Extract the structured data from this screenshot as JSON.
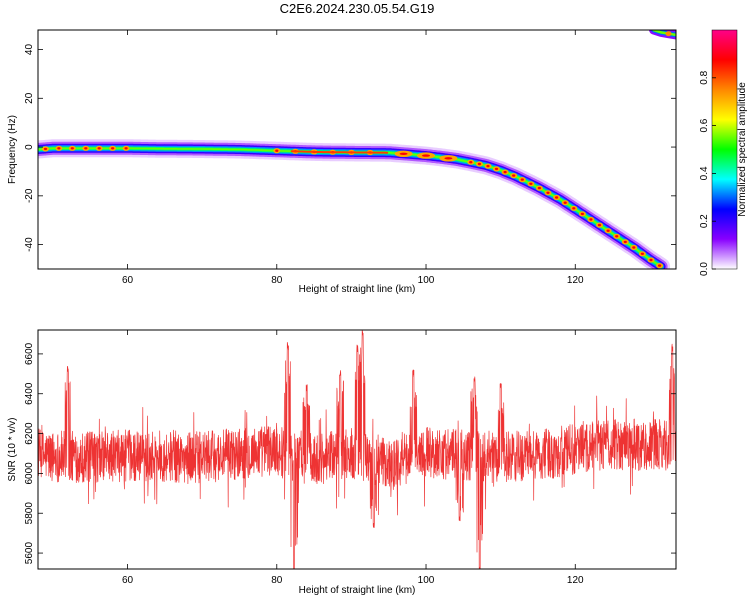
{
  "figure": {
    "title": "C2E6.2024.230.05.54.G19"
  },
  "chart_data": [
    {
      "type": "heatmap",
      "title": "C2E6.2024.230.05.54.G19",
      "xlabel": "Height of straight line (km)",
      "ylabel": "Frequency (Hz)",
      "xlim": [
        48,
        133.5
      ],
      "ylim": [
        -50,
        48
      ],
      "xticks": [
        60,
        80,
        100,
        120
      ],
      "yticks": [
        -40,
        -20,
        0,
        20,
        40
      ],
      "grid": false,
      "colorbar": {
        "label": "Normalized spectral amplitude",
        "range": [
          0,
          1
        ],
        "ticks": [
          0.0,
          0.2,
          0.4,
          0.6,
          0.8
        ],
        "tick_labels": [
          "0.0",
          "0.2",
          "0.4",
          "0.6",
          "0.8"
        ],
        "colormap": [
          "#ffffff",
          "#8800ff",
          "#0000ff",
          "#00ffff",
          "#00ff00",
          "#ffff00",
          "#ff8800",
          "#ff0000",
          "#ff0088"
        ]
      },
      "ridge": {
        "x": [
          48,
          50,
          55,
          60,
          65,
          70,
          75,
          80,
          85,
          90,
          95,
          98,
          100,
          102,
          104,
          106,
          108,
          110,
          112,
          115,
          118,
          120,
          122,
          125,
          128,
          130,
          131.5
        ],
        "y": [
          -1,
          -0.5,
          -0.5,
          -0.5,
          -0.7,
          -0.8,
          -1,
          -1.5,
          -2,
          -2.2,
          -2.3,
          -3,
          -3.5,
          -4.2,
          -5,
          -6.2,
          -7.5,
          -9.5,
          -12,
          -16.5,
          -21.5,
          -25.5,
          -29.5,
          -35.5,
          -41.5,
          -46,
          -49
        ]
      },
      "secondary_ridge": {
        "x": [
          130.5,
          131.5,
          132.5,
          133.5
        ],
        "y": [
          48,
          47,
          46.5,
          46
        ]
      }
    },
    {
      "type": "line",
      "xlabel": "Height of straight line (km)",
      "ylabel": "SNR (10 * v/v)",
      "xlim": [
        48,
        133.5
      ],
      "ylim": [
        5520,
        6720
      ],
      "xticks": [
        60,
        80,
        100,
        120
      ],
      "yticks": [
        5600,
        5800,
        6000,
        6200,
        6400,
        6600
      ],
      "grid": false,
      "series": [
        {
          "color": "#ee3333",
          "baseline_profile": {
            "x": [
              48,
              55,
              60,
              65,
              70,
              75,
              80,
              82,
              85,
              90,
              95,
              100,
              105,
              110,
              115,
              120,
              125,
              130,
              133.5
            ],
            "y": [
              6090,
              6080,
              6090,
              6085,
              6080,
              6100,
              6120,
              6080,
              6070,
              6100,
              6040,
              6110,
              6090,
              6080,
              6090,
              6120,
              6150,
              6140,
              6150
            ]
          },
          "noise_halfwidth": 130,
          "events": [
            {
              "x": 81.5,
              "y": 6640
            },
            {
              "x": 82.3,
              "y": 5500
            },
            {
              "x": 84,
              "y": 6430
            },
            {
              "x": 90.8,
              "y": 6630
            },
            {
              "x": 91.5,
              "y": 6710
            },
            {
              "x": 88.5,
              "y": 6510
            },
            {
              "x": 93,
              "y": 5730
            },
            {
              "x": 98.3,
              "y": 6500
            },
            {
              "x": 104.5,
              "y": 5770
            },
            {
              "x": 107.2,
              "y": 5520
            },
            {
              "x": 106.5,
              "y": 6470
            },
            {
              "x": 133,
              "y": 6630
            },
            {
              "x": 52,
              "y": 6520
            },
            {
              "x": 110,
              "y": 6440
            }
          ]
        }
      ]
    }
  ]
}
